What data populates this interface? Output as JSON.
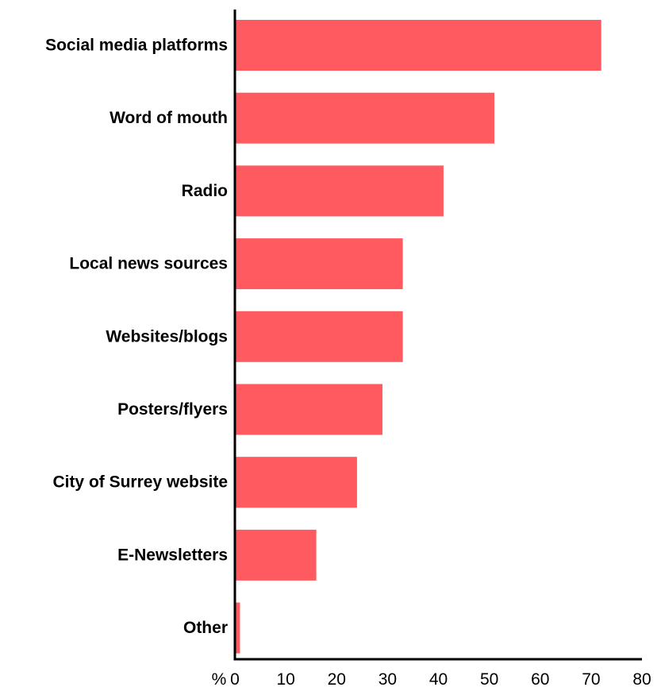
{
  "chart_data": {
    "type": "bar",
    "orientation": "horizontal",
    "categories": [
      "Social media platforms",
      "Word of mouth",
      "Radio",
      "Local news sources",
      "Websites/blogs",
      "Posters/flyers",
      "City of Surrey website",
      "E-Newsletters",
      "Other"
    ],
    "values": [
      72,
      51,
      41,
      33,
      33,
      29,
      24,
      16,
      1
    ],
    "xlim": [
      0,
      80
    ],
    "x_ticks": [
      "0",
      "10",
      "20",
      "30",
      "40",
      "50",
      "60",
      "70",
      "80"
    ],
    "x_unit_label": "%",
    "grid": false,
    "bar_color": "#ff5a5f",
    "axis_color": "#000000"
  }
}
